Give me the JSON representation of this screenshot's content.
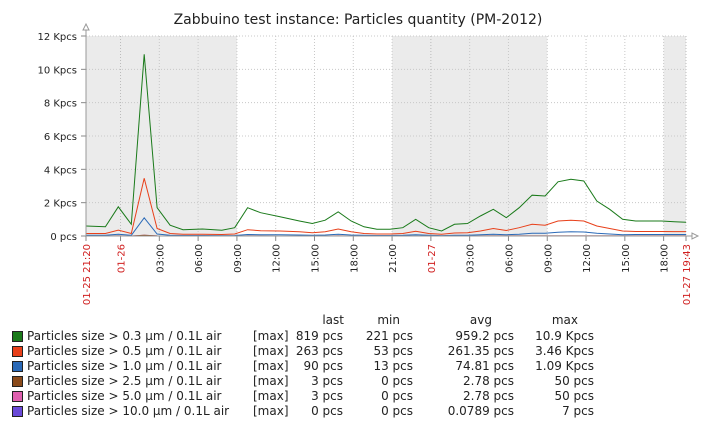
{
  "chart_data": {
    "type": "line",
    "title": "Zabbuino test instance: Particles quantity (PM-2012)",
    "ylim": [
      0,
      12000
    ],
    "y_ticks": [
      {
        "value": 0,
        "label": "0 pcs"
      },
      {
        "value": 2000,
        "label": "2 Kpcs"
      },
      {
        "value": 4000,
        "label": "4 Kpcs"
      },
      {
        "value": 6000,
        "label": "6 Kpcs"
      },
      {
        "value": 8000,
        "label": "8 Kpcs"
      },
      {
        "value": 10000,
        "label": "10 Kpcs"
      },
      {
        "value": 12000,
        "label": "12 Kpcs"
      }
    ],
    "xlim": [
      0,
      46.4
    ],
    "x_ticks": [
      {
        "hour": 0,
        "label": "01-25 21:20",
        "red": true
      },
      {
        "hour": 2.67,
        "label": "01-26",
        "red": true
      },
      {
        "hour": 5.67,
        "label": "03:00",
        "red": false
      },
      {
        "hour": 8.67,
        "label": "06:00",
        "red": false
      },
      {
        "hour": 11.67,
        "label": "09:00",
        "red": false
      },
      {
        "hour": 14.67,
        "label": "12:00",
        "red": false
      },
      {
        "hour": 17.67,
        "label": "15:00",
        "red": false
      },
      {
        "hour": 20.67,
        "label": "18:00",
        "red": false
      },
      {
        "hour": 23.67,
        "label": "21:00",
        "red": false
      },
      {
        "hour": 26.67,
        "label": "01-27",
        "red": true
      },
      {
        "hour": 29.67,
        "label": "03:00",
        "red": false
      },
      {
        "hour": 32.67,
        "label": "06:00",
        "red": false
      },
      {
        "hour": 35.67,
        "label": "09:00",
        "red": false
      },
      {
        "hour": 38.67,
        "label": "12:00",
        "red": false
      },
      {
        "hour": 41.67,
        "label": "15:00",
        "red": false
      },
      {
        "hour": 44.67,
        "label": "18:00",
        "red": false
      },
      {
        "hour": 46.4,
        "label": "01-27 19:43",
        "red": true
      }
    ],
    "night_bands": [
      [
        0,
        11.67
      ],
      [
        23.67,
        35.67
      ],
      [
        44.67,
        46.4
      ]
    ],
    "grid": true,
    "x": [
      0,
      1.5,
      2.5,
      3.5,
      4.5,
      5.5,
      6.5,
      7.5,
      9,
      10.5,
      11.5,
      12.5,
      13.5,
      15,
      16.5,
      17.5,
      18.5,
      19.5,
      20.5,
      21.5,
      22.5,
      23.5,
      24.5,
      25.5,
      26.5,
      27.5,
      28.5,
      29.5,
      30.5,
      31.5,
      32.5,
      33.5,
      34.5,
      35.5,
      36.5,
      37.5,
      38.5,
      39.5,
      40.5,
      41.5,
      42.5,
      43.5,
      44.5,
      45.5,
      46.4
    ],
    "series": [
      {
        "name": "Particles size > 0.3 µm / 0.1L air",
        "color": "#1a7a1a",
        "values": [
          600,
          550,
          1750,
          700,
          10900,
          1700,
          650,
          380,
          420,
          350,
          500,
          1700,
          1400,
          1150,
          900,
          750,
          950,
          1450,
          900,
          550,
          400,
          400,
          500,
          1000,
          500,
          300,
          700,
          750,
          1200,
          1600,
          1100,
          1700,
          2450,
          2400,
          3250,
          3400,
          3300,
          2100,
          1600,
          1000,
          900,
          900,
          900,
          850,
          819
        ]
      },
      {
        "name": "Particles size > 0.5 µm / 0.1L air",
        "color": "#e8401a",
        "values": [
          150,
          150,
          350,
          150,
          3460,
          450,
          150,
          100,
          100,
          90,
          120,
          380,
          320,
          300,
          250,
          200,
          250,
          420,
          250,
          150,
          120,
          120,
          150,
          280,
          150,
          100,
          180,
          200,
          300,
          450,
          330,
          500,
          700,
          650,
          900,
          950,
          900,
          600,
          450,
          300,
          270,
          270,
          270,
          265,
          263
        ]
      },
      {
        "name": "Particles size > 1.0 µm / 0.1L air",
        "color": "#2a6ab8",
        "values": [
          40,
          40,
          100,
          40,
          1090,
          120,
          40,
          30,
          30,
          25,
          30,
          90,
          80,
          70,
          60,
          50,
          60,
          100,
          60,
          40,
          30,
          30,
          40,
          70,
          40,
          25,
          45,
          50,
          70,
          100,
          80,
          110,
          170,
          160,
          230,
          260,
          240,
          160,
          120,
          80,
          90,
          90,
          90,
          90,
          90
        ]
      },
      {
        "name": "Particles size > 2.5 µm / 0.1L air",
        "color": "#8a4a1a",
        "values": [
          0,
          0,
          5,
          0,
          50,
          5,
          0,
          0,
          0,
          0,
          0,
          3,
          3,
          2,
          2,
          2,
          2,
          3,
          2,
          0,
          0,
          0,
          0,
          2,
          0,
          0,
          2,
          2,
          3,
          3,
          3,
          3,
          4,
          4,
          5,
          5,
          5,
          4,
          3,
          3,
          3,
          3,
          3,
          3,
          3
        ]
      },
      {
        "name": "Particles size > 5.0 µm / 0.1L air",
        "color": "#e060b0",
        "values": [
          0,
          0,
          5,
          0,
          50,
          5,
          0,
          0,
          0,
          0,
          0,
          3,
          3,
          2,
          2,
          2,
          2,
          3,
          2,
          0,
          0,
          0,
          0,
          2,
          0,
          0,
          2,
          2,
          3,
          3,
          3,
          3,
          4,
          4,
          5,
          5,
          5,
          4,
          3,
          3,
          3,
          3,
          3,
          3,
          3
        ]
      },
      {
        "name": "Particles size > 10.0 µm / 0.1L air",
        "color": "#6a4ad8",
        "values": [
          0,
          0,
          0,
          0,
          7,
          0,
          0,
          0,
          0,
          0,
          0,
          0,
          0,
          0,
          0,
          0,
          0,
          0,
          0,
          0,
          0,
          0,
          0,
          0,
          0,
          0,
          0,
          0,
          0,
          0,
          0,
          0,
          0,
          0,
          0,
          0,
          0,
          0,
          0,
          0,
          0,
          0,
          0,
          0,
          0
        ]
      }
    ]
  },
  "legend": {
    "headers": {
      "last": "last",
      "min": "min",
      "avg": "avg",
      "max": "max"
    },
    "rows": [
      {
        "color": "#1a7a1a",
        "name": "Particles size > 0.3 µm / 0.1L air",
        "fn": "[max]",
        "last": "819 pcs",
        "min": "221 pcs",
        "avg": "959.2 pcs",
        "max": "10.9 Kpcs"
      },
      {
        "color": "#e8401a",
        "name": "Particles size > 0.5 µm / 0.1L air",
        "fn": "[max]",
        "last": "263 pcs",
        "min": "53 pcs",
        "avg": "261.35 pcs",
        "max": "3.46 Kpcs"
      },
      {
        "color": "#2a6ab8",
        "name": "Particles size > 1.0 µm / 0.1L air",
        "fn": "[max]",
        "last": "90 pcs",
        "min": "13 pcs",
        "avg": "74.81 pcs",
        "max": "1.09 Kpcs"
      },
      {
        "color": "#8a4a1a",
        "name": "Particles size > 2.5 µm / 0.1L air",
        "fn": "[max]",
        "last": "3 pcs",
        "min": "0 pcs",
        "avg": "2.78 pcs",
        "max": "50 pcs"
      },
      {
        "color": "#e060b0",
        "name": "Particles size > 5.0 µm / 0.1L air",
        "fn": "[max]",
        "last": "3 pcs",
        "min": "0 pcs",
        "avg": "2.78 pcs",
        "max": "50 pcs"
      },
      {
        "color": "#6a4ad8",
        "name": "Particles size > 10.0 µm / 0.1L air",
        "fn": "[max]",
        "last": "0 pcs",
        "min": "0 pcs",
        "avg": "0.0789 pcs",
        "max": "7 pcs"
      }
    ]
  }
}
